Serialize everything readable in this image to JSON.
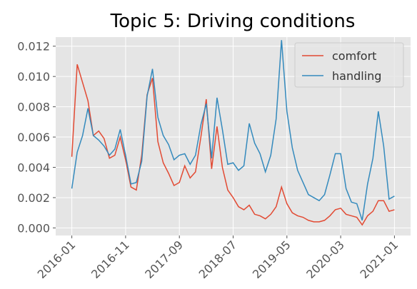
{
  "chart_data": {
    "type": "line",
    "title": "Topic 5: Driving conditions",
    "x": [
      "2016-01",
      "2016-02",
      "2016-03",
      "2016-04",
      "2016-05",
      "2016-06",
      "2016-07",
      "2016-08",
      "2016-09",
      "2016-10",
      "2016-11",
      "2016-12",
      "2017-01",
      "2017-02",
      "2017-03",
      "2017-04",
      "2017-05",
      "2017-06",
      "2017-07",
      "2017-08",
      "2017-09",
      "2017-10",
      "2017-11",
      "2017-12",
      "2018-01",
      "2018-02",
      "2018-03",
      "2018-04",
      "2018-05",
      "2018-06",
      "2018-07",
      "2018-08",
      "2018-09",
      "2018-10",
      "2018-11",
      "2018-12",
      "2019-01",
      "2019-02",
      "2019-03",
      "2019-04",
      "2019-05",
      "2019-06",
      "2019-07",
      "2019-08",
      "2019-09",
      "2019-10",
      "2019-11",
      "2019-12",
      "2020-01",
      "2020-02",
      "2020-03",
      "2020-04",
      "2020-05",
      "2020-06",
      "2020-07",
      "2020-08",
      "2020-09",
      "2020-10",
      "2020-11",
      "2020-12",
      "2021-01"
    ],
    "series": [
      {
        "name": "comfort",
        "color": "#e24a33",
        "values": [
          0.0047,
          0.0108,
          0.0096,
          0.0084,
          0.0061,
          0.0064,
          0.0059,
          0.0046,
          0.0048,
          0.006,
          0.0045,
          0.0027,
          0.0025,
          0.0048,
          0.0088,
          0.0099,
          0.0057,
          0.0043,
          0.0036,
          0.0028,
          0.003,
          0.0041,
          0.0033,
          0.0037,
          0.006,
          0.0085,
          0.0039,
          0.0067,
          0.004,
          0.0025,
          0.002,
          0.0014,
          0.0012,
          0.0015,
          0.0009,
          0.0008,
          0.0006,
          0.0009,
          0.0014,
          0.0027,
          0.0016,
          0.001,
          0.0008,
          0.0007,
          0.0005,
          0.0004,
          0.0004,
          0.0005,
          0.0008,
          0.0012,
          0.0013,
          0.0009,
          0.0008,
          0.0007,
          0.0002,
          0.0008,
          0.0011,
          0.0018,
          0.0018,
          0.0011,
          0.0012
        ]
      },
      {
        "name": "handling",
        "color": "#348abd",
        "values": [
          0.0026,
          0.005,
          0.0061,
          0.0079,
          0.0061,
          0.0058,
          0.0054,
          0.0048,
          0.0052,
          0.0065,
          0.0048,
          0.0029,
          0.003,
          0.0044,
          0.0087,
          0.0105,
          0.0073,
          0.0061,
          0.0055,
          0.0045,
          0.0048,
          0.0049,
          0.0042,
          0.0048,
          0.0068,
          0.0082,
          0.0046,
          0.0086,
          0.0065,
          0.0042,
          0.0043,
          0.0038,
          0.0041,
          0.0069,
          0.0056,
          0.0049,
          0.0037,
          0.0048,
          0.0072,
          0.0124,
          0.0077,
          0.0053,
          0.0038,
          0.003,
          0.0022,
          0.002,
          0.0018,
          0.0022,
          0.0035,
          0.0049,
          0.0049,
          0.0026,
          0.0017,
          0.0016,
          0.0005,
          0.0029,
          0.0046,
          0.0077,
          0.0054,
          0.0019,
          0.0021
        ]
      }
    ],
    "xlim": [
      "2015-10",
      "2021-04"
    ],
    "xticks": [
      "2016-01",
      "2016-11",
      "2017-09",
      "2018-07",
      "2019-05",
      "2020-03",
      "2021-01"
    ],
    "ylim": [
      -0.0005,
      0.0126
    ],
    "yticks": [
      {
        "value": 0,
        "label": "0.000"
      },
      {
        "value": 0.002,
        "label": "0.002"
      },
      {
        "value": 0.004,
        "label": "0.004"
      },
      {
        "value": 0.006,
        "label": "0.006"
      },
      {
        "value": 0.008,
        "label": "0.008"
      },
      {
        "value": 0.01,
        "label": "0.010"
      },
      {
        "value": 0.012,
        "label": "0.012"
      }
    ],
    "grid": true,
    "legend": "upper right"
  }
}
